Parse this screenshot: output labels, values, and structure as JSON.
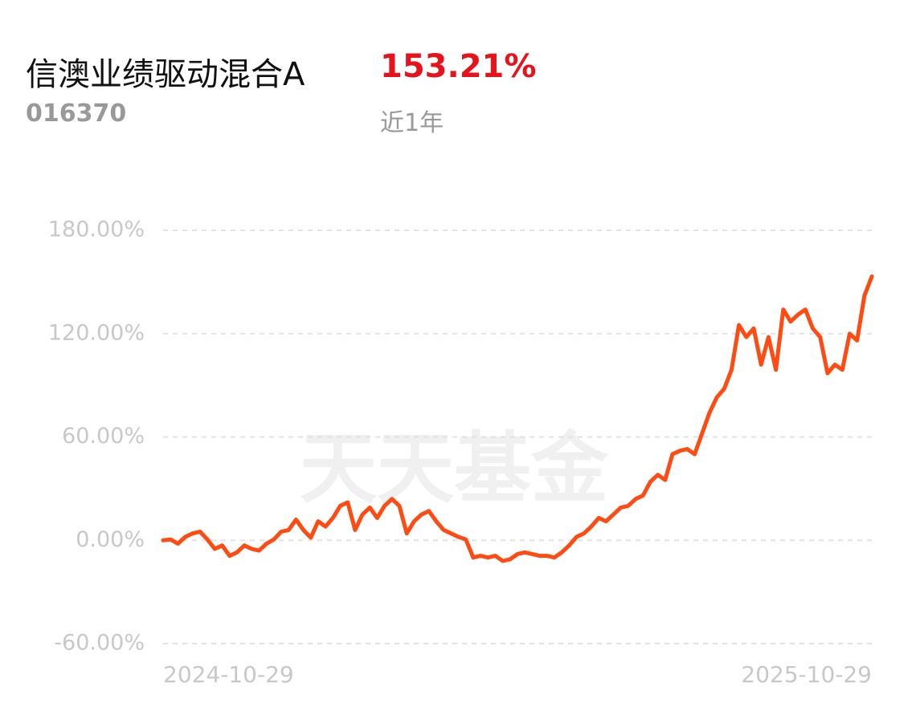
{
  "header": {
    "name": "信澳业绩驱动混合A",
    "return": "153.21%",
    "code": "016370",
    "period": "近1年"
  },
  "chart_data": {
    "type": "line",
    "watermark": "天天基金",
    "x_start": "2024-10-29",
    "x_end": "2025-10-29",
    "ylim": [
      -60,
      180
    ],
    "yticks": [
      {
        "value": -60,
        "label": "-60.00%"
      },
      {
        "value": 0,
        "label": "0.00%"
      },
      {
        "value": 60,
        "label": "60.00%"
      },
      {
        "value": 120,
        "label": "120.00%"
      },
      {
        "value": 180,
        "label": "180.00%"
      }
    ],
    "grid": true,
    "series": [
      {
        "color": "#ff4a12",
        "values": [
          0,
          0.5,
          -2,
          2,
          4,
          5,
          0.5,
          -5,
          -3,
          -9,
          -7,
          -3,
          -5,
          -6,
          -2,
          0.5,
          5,
          6,
          12,
          6,
          1.5,
          11,
          8,
          13,
          20,
          22,
          6,
          15,
          19,
          13,
          20,
          24,
          20,
          4,
          11,
          15,
          17,
          11,
          6,
          4,
          2,
          0.5,
          -10,
          -9,
          -10,
          -9,
          -12,
          -11,
          -8,
          -7,
          -8,
          -9,
          -9,
          -10,
          -7,
          -3,
          2,
          4,
          8,
          13,
          11,
          15,
          19,
          20,
          24,
          26,
          34,
          38,
          35,
          50,
          52,
          53,
          50,
          62,
          74,
          83,
          88,
          99,
          125,
          118,
          123,
          102,
          118,
          99,
          134,
          127,
          131,
          134,
          123,
          118,
          97,
          102,
          99,
          120,
          116,
          142,
          153.21
        ]
      }
    ]
  }
}
